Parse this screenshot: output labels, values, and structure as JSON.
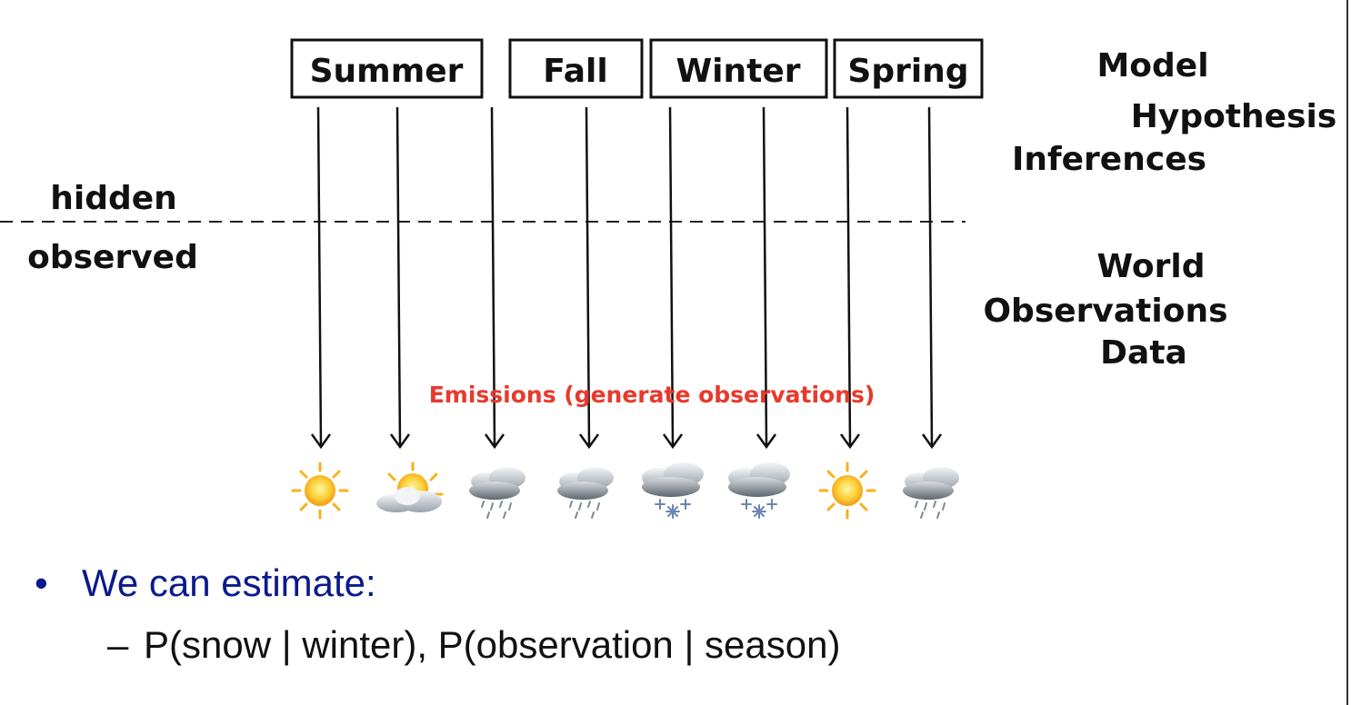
{
  "seasons": [
    "Summer",
    "Fall",
    "Winter",
    "Spring"
  ],
  "layer_labels": {
    "hidden": "hidden",
    "observed": "observed"
  },
  "model_labels": [
    "Model",
    "Hypothesis",
    "Inferences"
  ],
  "world_labels": [
    "World",
    "Observations",
    "Data"
  ],
  "emissions_label": "Emissions (generate observations)",
  "observations": [
    "sun-icon",
    "partly-cloudy-icon",
    "rain-icon",
    "rain-icon",
    "snow-icon",
    "snow-icon",
    "sun-icon",
    "rain-icon"
  ],
  "colors": {
    "emissions": "#e8392b",
    "bullet": "#0a1a8c",
    "text": "#111111"
  },
  "bullets": {
    "main_marker": "•",
    "main": "We can estimate:",
    "sub_marker": "–",
    "sub": "P(snow | winter), P(observation | season)"
  }
}
